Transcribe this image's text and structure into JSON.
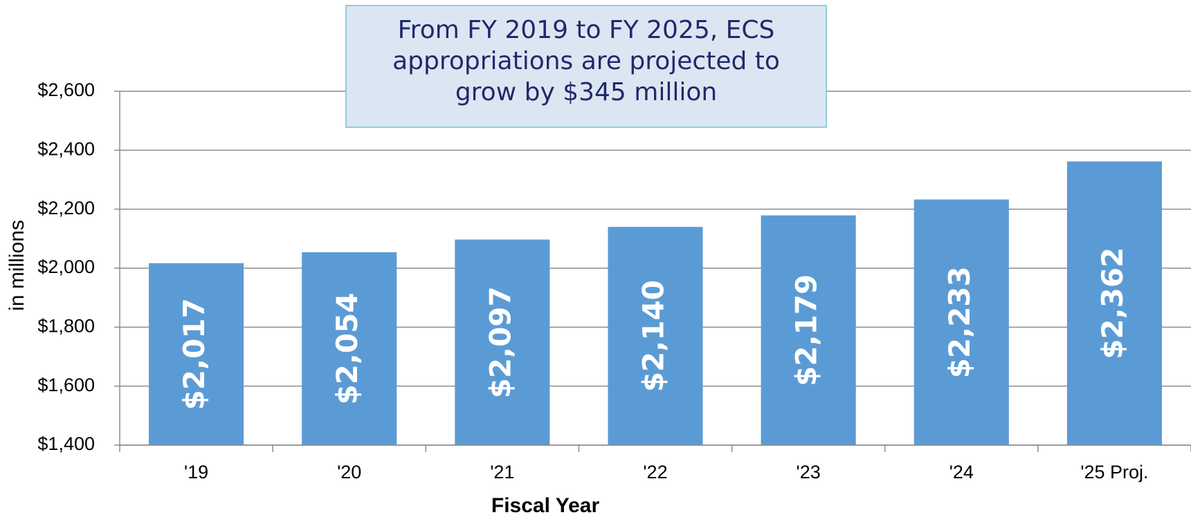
{
  "chart_data": {
    "type": "bar",
    "annotation": "From FY 2019 to FY 2025, ECS appropriations are projected to grow by $345 million",
    "x_label": "Fiscal Year",
    "y_label": "in millions",
    "categories": [
      "'19",
      "'20",
      "'21",
      "'22",
      "'23",
      "'24",
      "'25 Proj."
    ],
    "values": [
      2017,
      2054,
      2097,
      2140,
      2179,
      2233,
      2362
    ],
    "value_labels": [
      "$2,017",
      "$2,054",
      "$2,097",
      "$2,140",
      "$2,179",
      "$2,233",
      "$2,362"
    ],
    "color": "#5b9bd5",
    "ylim": [
      1400,
      2600
    ],
    "yticks": [
      {
        "value": 1400,
        "label": "$1,400"
      },
      {
        "value": 1600,
        "label": "$1,600"
      },
      {
        "value": 1800,
        "label": "$1,800"
      },
      {
        "value": 2000,
        "label": "$2,000"
      },
      {
        "value": 2200,
        "label": "$2,200"
      },
      {
        "value": 2400,
        "label": "$2,400"
      },
      {
        "value": 2600,
        "label": "$2,600"
      }
    ],
    "grid": true
  }
}
